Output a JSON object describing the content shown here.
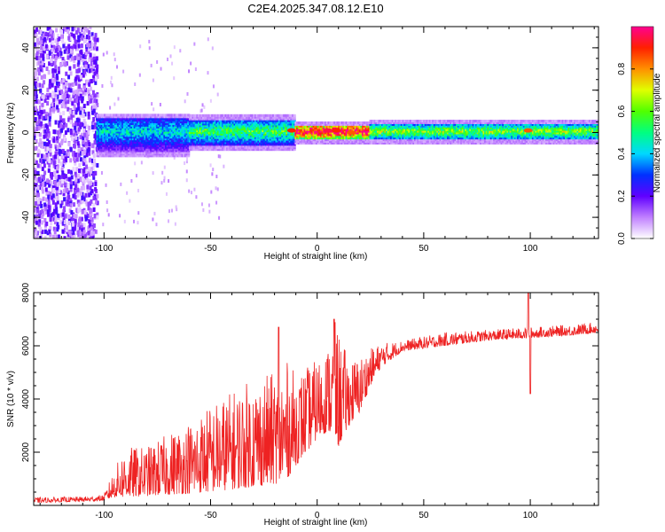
{
  "figure_title": "C2E4.2025.347.08.12.E10",
  "colors": {
    "snr_line": "#ee2222",
    "background": "#ffffff",
    "axes": "#000000"
  },
  "colorbar": {
    "label": "Normalized spectral amplitude",
    "range": [
      0,
      1
    ],
    "ticks": [
      "0.0",
      "0.2",
      "0.4",
      "0.6",
      "0.8"
    ],
    "tick_values": [
      0,
      0.2,
      0.4,
      0.6,
      0.8
    ],
    "colormap": [
      "#ffffff",
      "#c080ff",
      "#6000ff",
      "#0030ff",
      "#00d8ff",
      "#00ff80",
      "#50ff00",
      "#e0ff00",
      "#ff9000",
      "#ff2000",
      "#ff0090"
    ]
  },
  "chart_data": [
    {
      "type": "heatmap",
      "title": "C2E4.2025.347.08.12.E10",
      "xlabel": "Height of straight line (km)",
      "ylabel": "Frequency (Hz)",
      "xlim": [
        -133,
        132
      ],
      "ylim": [
        -50,
        50
      ],
      "xticks": [
        -100,
        -50,
        0,
        50,
        100
      ],
      "yticks": [
        -40,
        -20,
        0,
        20,
        40
      ],
      "xtick_labels": [
        "-100",
        "-50",
        "0",
        "50",
        "100"
      ],
      "ytick_labels": [
        "-40",
        "-20",
        "0",
        "20",
        "40"
      ],
      "description_regions": [
        {
          "x_range": [
            -133,
            -103
          ],
          "frequency_spread": [
            -50,
            50
          ],
          "amplitude": 0.15
        },
        {
          "x_range": [
            -103,
            -60
          ],
          "frequency_spread": [
            -9,
            7
          ],
          "amplitude": 0.35
        },
        {
          "x_range": [
            -60,
            -10
          ],
          "frequency_spread": [
            -6,
            6
          ],
          "amplitude": 0.45
        },
        {
          "x_range": [
            -10,
            25
          ],
          "frequency_spread": [
            -3,
            3
          ],
          "amplitude": 0.85
        },
        {
          "x_range": [
            25,
            132
          ],
          "frequency_spread": [
            -3,
            4
          ],
          "amplitude": 0.5
        }
      ],
      "hot_spots": [
        {
          "x": -12,
          "f": 1,
          "amplitude": 0.9
        },
        {
          "x": 5,
          "f": 1,
          "amplitude": 0.95
        },
        {
          "x": 9,
          "f": 1,
          "amplitude": 0.9
        },
        {
          "x": 16,
          "f": 0,
          "amplitude": 0.85
        },
        {
          "x": 99,
          "f": 1,
          "amplitude": 0.85
        }
      ]
    },
    {
      "type": "line",
      "title": "",
      "xlabel": "Height of straight line (km)",
      "ylabel": "SNR (10 * v/v)",
      "xlim": [
        -133,
        132
      ],
      "ylim": [
        0,
        8000
      ],
      "xticks": [
        -100,
        -50,
        0,
        50,
        100
      ],
      "yticks": [
        2000,
        4000,
        6000,
        8000
      ],
      "xtick_labels": [
        "-100",
        "-50",
        "0",
        "50",
        "100"
      ],
      "ytick_labels": [
        "2000",
        "4000",
        "6000",
        "8000"
      ],
      "series": [
        {
          "name": "SNR",
          "envelope": {
            "x": [
              -133,
              -110,
              -100,
              -95,
              -90,
              -80,
              -70,
              -60,
              -50,
              -40,
              -30,
              -20,
              -15,
              -10,
              -5,
              0,
              5,
              8,
              10,
              15,
              20,
              25,
              30,
              40,
              60,
              80,
              100,
              120,
              132
            ],
            "low": [
              100,
              150,
              180,
              300,
              300,
              350,
              400,
              450,
              500,
              600,
              700,
              800,
              900,
              1500,
              2000,
              2500,
              2800,
              2500,
              2200,
              3000,
              3500,
              4500,
              5200,
              5800,
              6000,
              6200,
              6300,
              6400,
              6500
            ],
            "high": [
              300,
              330,
              400,
              1400,
              2200,
              2200,
              2700,
              3200,
              3800,
              4300,
              4800,
              5000,
              5500,
              5000,
              5200,
              5500,
              6000,
              7000,
              6500,
              5500,
              5600,
              5900,
              6100,
              6200,
              6500,
              6600,
              6700,
              6800,
              6900
            ]
          },
          "spikes": [
            {
              "x": -18,
              "y": 6700
            },
            {
              "x": 8,
              "y": 7000
            },
            {
              "x": 99,
              "y": 8000
            },
            {
              "x": 100,
              "y": 4200
            }
          ]
        }
      ]
    }
  ]
}
